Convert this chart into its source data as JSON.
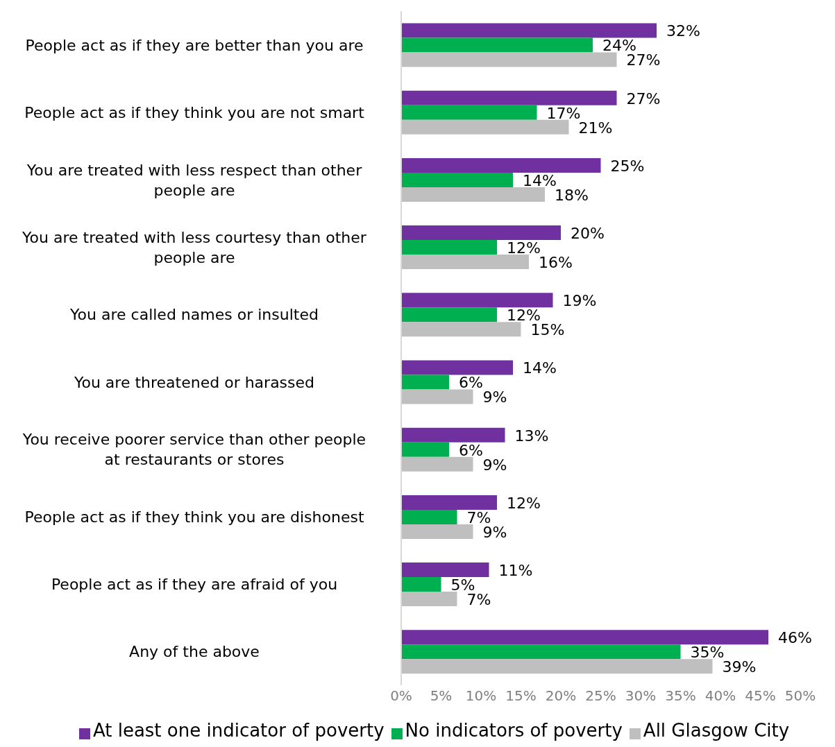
{
  "chart_data": {
    "type": "bar",
    "orientation": "horizontal",
    "categories": [
      "People act as if they are better than you are",
      "People act as if they think you are not smart",
      "You are treated with less respect than other people are",
      "You are treated with less courtesy than other people are",
      "You are called names or insulted",
      "You are threatened or harassed",
      "You receive poorer service than other people at restaurants or stores",
      "People act as if they think you are dishonest",
      "People act as if they are afraid of you",
      "Any of the above"
    ],
    "series": [
      {
        "name": "At least one indicator of poverty",
        "color": "#7030a0",
        "values": [
          32,
          27,
          25,
          20,
          19,
          14,
          13,
          12,
          11,
          46
        ],
        "value_labels": [
          "32%",
          "27%",
          "25%",
          "20%",
          "19%",
          "14%",
          "13%",
          "12%",
          "11%",
          "46%"
        ]
      },
      {
        "name": "No indicators of poverty",
        "color": "#00b050",
        "values": [
          24,
          17,
          14,
          12,
          12,
          6,
          6,
          7,
          5,
          35
        ],
        "value_labels": [
          "24%",
          "17%",
          "14%",
          "12%",
          "12%",
          "6%",
          "6%",
          "7%",
          "5%",
          "35%"
        ]
      },
      {
        "name": "All Glasgow City",
        "color": "#bfbfbf",
        "values": [
          27,
          21,
          18,
          16,
          15,
          9,
          9,
          9,
          7,
          39
        ],
        "value_labels": [
          "27%",
          "21%",
          "18%",
          "16%",
          "15%",
          "9%",
          "9%",
          "9%",
          "7%",
          "39%"
        ]
      }
    ],
    "xlim": [
      0,
      50
    ],
    "xticks": [
      {
        "value": 0,
        "label": "0%"
      },
      {
        "value": 5,
        "label": "5%"
      },
      {
        "value": 10,
        "label": "10%"
      },
      {
        "value": 15,
        "label": "15%"
      },
      {
        "value": 20,
        "label": "20%"
      },
      {
        "value": 25,
        "label": "25%"
      },
      {
        "value": 30,
        "label": "30%"
      },
      {
        "value": 35,
        "label": "35%"
      },
      {
        "value": 40,
        "label": "40%"
      },
      {
        "value": 45,
        "label": "45%"
      },
      {
        "value": 50,
        "label": "50%"
      }
    ],
    "grid": false,
    "legend": "bottom"
  }
}
